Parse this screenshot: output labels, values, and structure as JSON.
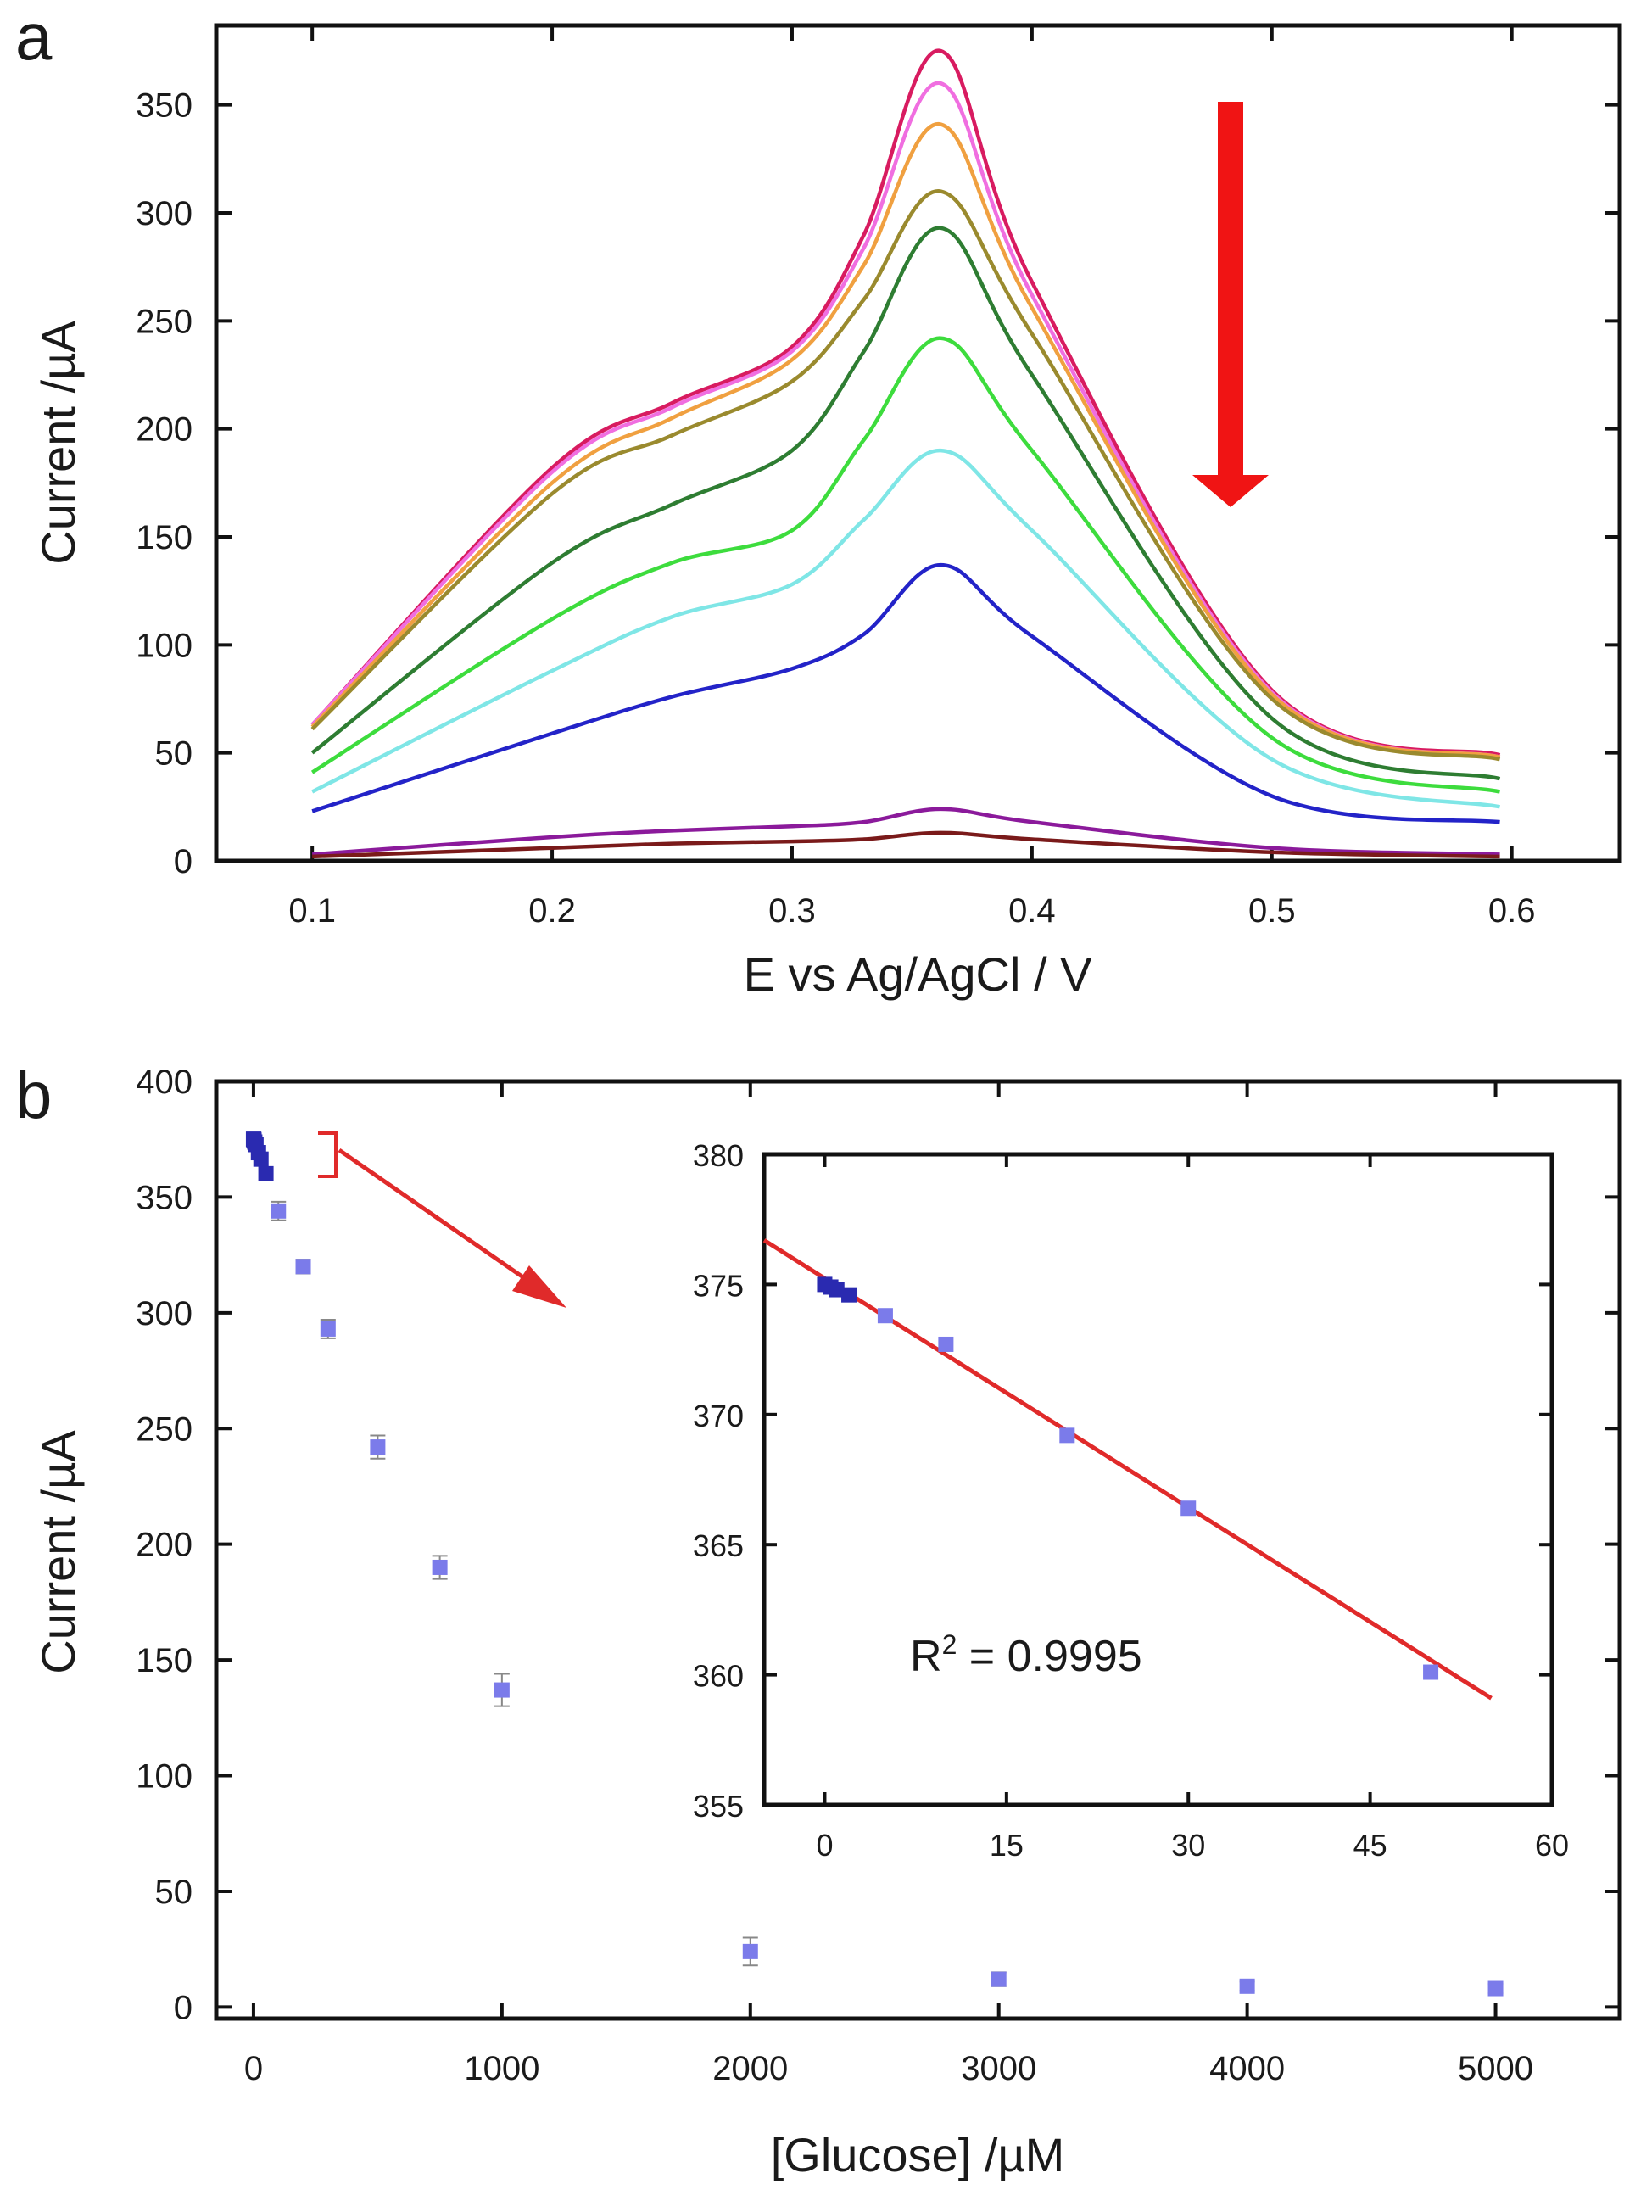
{
  "chart_data": [
    {
      "panel": "a",
      "type": "line",
      "xlabel": "E vs Ag/AgCl / V",
      "ylabel": "Current /µA",
      "xlim": [
        0.06,
        0.645
      ],
      "ylim": [
        0,
        375
      ],
      "xticks": [
        "0.1",
        "0.2",
        "0.3",
        "0.4",
        "0.5",
        "0.6"
      ],
      "yticks": [
        "0",
        "50",
        "100",
        "150",
        "200",
        "250",
        "300",
        "350"
      ],
      "arrow": "downward, decreasing peak current",
      "series": [
        {
          "color": "#d81b60",
          "values": [
            [
              0.1,
              63
            ],
            [
              0.2,
              182
            ],
            [
              0.25,
              212
            ],
            [
              0.3,
              238
            ],
            [
              0.33,
              290
            ],
            [
              0.362,
              375
            ],
            [
              0.4,
              268
            ],
            [
              0.5,
              79
            ],
            [
              0.595,
              49
            ]
          ]
        },
        {
          "color": "#f06ee0",
          "values": [
            [
              0.1,
              63
            ],
            [
              0.2,
              180
            ],
            [
              0.25,
              210
            ],
            [
              0.3,
              236
            ],
            [
              0.33,
              284
            ],
            [
              0.362,
              360
            ],
            [
              0.4,
              262
            ],
            [
              0.5,
              78
            ],
            [
              0.595,
              48
            ]
          ]
        },
        {
          "color": "#f0a040",
          "values": [
            [
              0.1,
              62
            ],
            [
              0.2,
              175
            ],
            [
              0.25,
              205
            ],
            [
              0.3,
              232
            ],
            [
              0.33,
              276
            ],
            [
              0.362,
              341
            ],
            [
              0.4,
              256
            ],
            [
              0.5,
              77
            ],
            [
              0.595,
              48
            ]
          ]
        },
        {
          "color": "#9a8a2e",
          "values": [
            [
              0.1,
              61
            ],
            [
              0.2,
              170
            ],
            [
              0.25,
              197
            ],
            [
              0.3,
              222
            ],
            [
              0.33,
              260
            ],
            [
              0.362,
              310
            ],
            [
              0.4,
              244
            ],
            [
              0.5,
              75
            ],
            [
              0.595,
              47
            ]
          ]
        },
        {
          "color": "#2e7d32",
          "values": [
            [
              0.1,
              50
            ],
            [
              0.2,
              138
            ],
            [
              0.25,
              165
            ],
            [
              0.3,
              190
            ],
            [
              0.33,
              236
            ],
            [
              0.362,
              293
            ],
            [
              0.4,
              225
            ],
            [
              0.5,
              66
            ],
            [
              0.595,
              38
            ]
          ]
        },
        {
          "color": "#3ddc3d",
          "values": [
            [
              0.1,
              41
            ],
            [
              0.2,
              112
            ],
            [
              0.25,
              138
            ],
            [
              0.3,
              153
            ],
            [
              0.33,
              195
            ],
            [
              0.362,
              242
            ],
            [
              0.4,
              190
            ],
            [
              0.5,
              57
            ],
            [
              0.595,
              32
            ]
          ]
        },
        {
          "color": "#7fe6e6",
          "values": [
            [
              0.1,
              32
            ],
            [
              0.2,
              88
            ],
            [
              0.25,
              113
            ],
            [
              0.3,
              128
            ],
            [
              0.33,
              158
            ],
            [
              0.362,
              190
            ],
            [
              0.4,
              153
            ],
            [
              0.5,
              47
            ],
            [
              0.595,
              25
            ]
          ]
        },
        {
          "color": "#2323c8",
          "values": [
            [
              0.1,
              23
            ],
            [
              0.2,
              59
            ],
            [
              0.25,
              76
            ],
            [
              0.3,
              89
            ],
            [
              0.33,
              105
            ],
            [
              0.362,
              137
            ],
            [
              0.4,
              104
            ],
            [
              0.5,
              30
            ],
            [
              0.595,
              18
            ]
          ]
        },
        {
          "color": "#8b1a9b",
          "values": [
            [
              0.1,
              3
            ],
            [
              0.2,
              11
            ],
            [
              0.25,
              14
            ],
            [
              0.3,
              16
            ],
            [
              0.33,
              18
            ],
            [
              0.362,
              24
            ],
            [
              0.4,
              18
            ],
            [
              0.5,
              6
            ],
            [
              0.595,
              3
            ]
          ]
        },
        {
          "color": "#7a1a1a",
          "values": [
            [
              0.1,
              2
            ],
            [
              0.2,
              6
            ],
            [
              0.25,
              8
            ],
            [
              0.3,
              9
            ],
            [
              0.33,
              10
            ],
            [
              0.362,
              13
            ],
            [
              0.4,
              10
            ],
            [
              0.5,
              4
            ],
            [
              0.595,
              2
            ]
          ]
        }
      ]
    },
    {
      "panel": "b",
      "type": "scatter",
      "xlabel": "[Glucose] /µM",
      "ylabel": "Current /µA",
      "xlim": [
        -150,
        5500
      ],
      "ylim": [
        -5,
        400
      ],
      "xticks": [
        "0",
        "1000",
        "2000",
        "3000",
        "4000",
        "5000"
      ],
      "yticks": [
        "0",
        "50",
        "100",
        "150",
        "200",
        "250",
        "300",
        "350",
        "400"
      ],
      "point_color": "#7b7bea",
      "points": [
        {
          "x": 0,
          "y": 375,
          "err": 1
        },
        {
          "x": 1,
          "y": 375,
          "err": 1
        },
        {
          "x": 2,
          "y": 374.6,
          "err": 1
        },
        {
          "x": 5,
          "y": 373.8,
          "err": 1
        },
        {
          "x": 10,
          "y": 372.7,
          "err": 1
        },
        {
          "x": 20,
          "y": 369.2,
          "err": 1
        },
        {
          "x": 30,
          "y": 366.4,
          "err": 1
        },
        {
          "x": 50,
          "y": 360.1,
          "err": 1
        },
        {
          "x": 100,
          "y": 344,
          "err": 4
        },
        {
          "x": 200,
          "y": 320,
          "err": 3
        },
        {
          "x": 300,
          "y": 293,
          "err": 4
        },
        {
          "x": 500,
          "y": 242,
          "err": 5
        },
        {
          "x": 750,
          "y": 190,
          "err": 5
        },
        {
          "x": 1000,
          "y": 137,
          "err": 7
        },
        {
          "x": 2000,
          "y": 24,
          "err": 6
        },
        {
          "x": 3000,
          "y": 12,
          "err": 3
        },
        {
          "x": 4000,
          "y": 9,
          "err": 2
        },
        {
          "x": 5000,
          "y": 8,
          "err": 2
        }
      ],
      "inset": {
        "type": "scatter",
        "xlim": [
          -5,
          60
        ],
        "ylim": [
          355,
          380
        ],
        "xticks": [
          "0",
          "15",
          "30",
          "45",
          "60"
        ],
        "yticks": [
          "355",
          "360",
          "365",
          "370",
          "375",
          "380"
        ],
        "points": [
          {
            "x": 0,
            "y": 375
          },
          {
            "x": 0.5,
            "y": 374.9
          },
          {
            "x": 1,
            "y": 374.8
          },
          {
            "x": 2,
            "y": 374.6
          },
          {
            "x": 5,
            "y": 373.8
          },
          {
            "x": 10,
            "y": 372.7
          },
          {
            "x": 20,
            "y": 369.2
          },
          {
            "x": 30,
            "y": 366.4
          },
          {
            "x": 50,
            "y": 360.1
          }
        ],
        "fit_line": {
          "x": [
            -5,
            55
          ],
          "y": [
            376.7,
            359.1
          ],
          "color": "#e02a2a"
        },
        "r2_label": "R",
        "r2_sup": "2",
        "r2_value": " = 0.9995"
      }
    }
  ],
  "labels": {
    "panel_a": "a",
    "panel_b": "b"
  },
  "colors": {
    "arrow": "#f01414",
    "zoom_arrow": "#e02a2a"
  }
}
